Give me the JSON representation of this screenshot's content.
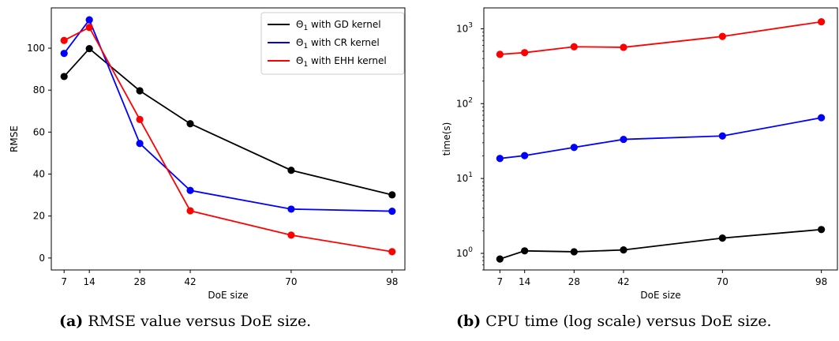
{
  "chart_data": [
    {
      "type": "line",
      "xlabel": "DoE size",
      "ylabel": "RMSE",
      "x": [
        7,
        14,
        28,
        42,
        70,
        98
      ],
      "xticks": [
        "7",
        "14",
        "28",
        "42",
        "70",
        "98"
      ],
      "yticks": [
        "0",
        "20",
        "40",
        "60",
        "80",
        "100"
      ],
      "xlim": [
        3.45,
        101.55
      ],
      "ylim": [
        -5.7,
        119.2
      ],
      "legend_position": "top-right",
      "series": [
        {
          "name": "Θ1 with GD kernel",
          "legend_base": "Θ",
          "legend_sub": "1",
          "legend_rest": " with GD kernel",
          "color": "#000000",
          "values": [
            86.5,
            99.8,
            79.7,
            64.0,
            41.8,
            30.1
          ]
        },
        {
          "name": "Θ1 with CR kernel",
          "legend_base": "Θ",
          "legend_sub": "1",
          "legend_rest": " with CR kernel",
          "color": "#0000ff",
          "values": [
            97.5,
            113.5,
            54.6,
            32.2,
            23.3,
            22.3
          ]
        },
        {
          "name": "Θ1 with EHH kernel",
          "legend_base": "Θ",
          "legend_sub": "1",
          "legend_rest": " with EHH kernel",
          "color": "#ff0000",
          "values": [
            103.7,
            109.9,
            66.0,
            22.5,
            10.9,
            3.0
          ]
        }
      ]
    },
    {
      "type": "line",
      "xlabel": "DoE size",
      "ylabel": "time(s)",
      "yscale": "log",
      "x": [
        7,
        14,
        28,
        42,
        70,
        98
      ],
      "xticks": [
        "7",
        "14",
        "28",
        "42",
        "70",
        "98"
      ],
      "yticks": [
        {
          "base": "10",
          "exp": "0",
          "value": 1
        },
        {
          "base": "10",
          "exp": "1",
          "value": 10
        },
        {
          "base": "10",
          "exp": "2",
          "value": 100
        },
        {
          "base": "10",
          "exp": "3",
          "value": 1000
        }
      ],
      "xlim": [
        2.45,
        102.55
      ],
      "ylim": [
        0.6,
        1900
      ],
      "series": [
        {
          "color": "#000000",
          "values": [
            0.84,
            1.08,
            1.05,
            1.11,
            1.6,
            2.08
          ]
        },
        {
          "color": "#0000ff",
          "values": [
            18.5,
            20.2,
            26.0,
            33.3,
            37.0,
            64.8
          ]
        },
        {
          "color": "#ff0000",
          "values": [
            455,
            480,
            575,
            565,
            790,
            1240
          ]
        }
      ]
    }
  ],
  "captions": {
    "a": {
      "label": "(a)",
      "text": " RMSE value versus DoE size."
    },
    "b": {
      "label": "(b)",
      "text": " CPU time (log scale) versus DoE size."
    }
  }
}
